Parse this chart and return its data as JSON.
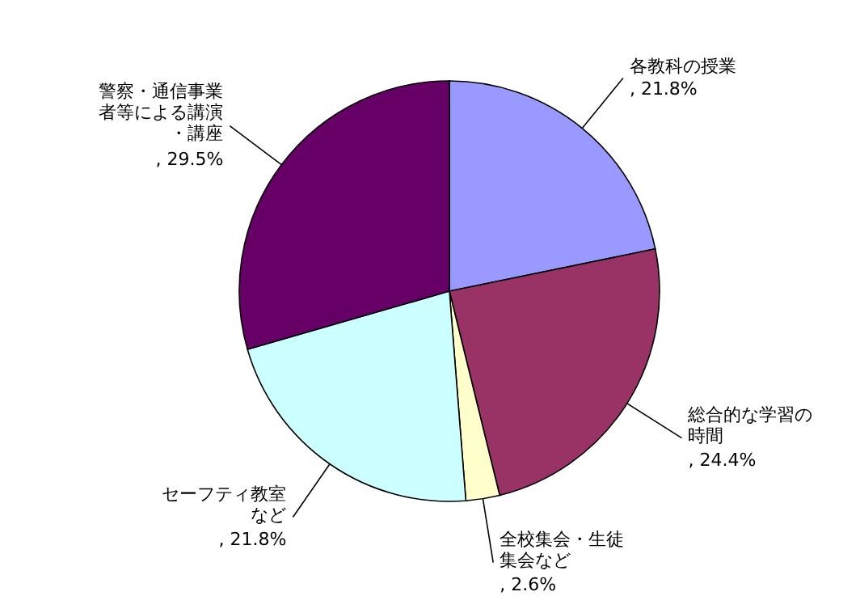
{
  "chart_data": {
    "type": "pie",
    "categories": [
      "各教科の授業",
      "総合的な学習の時間",
      "全校集会・生徒集会など",
      "セーフティ教室など",
      "警察・通信事業者等による講演・講座"
    ],
    "values": [
      21.8,
      24.4,
      2.6,
      21.8,
      29.5
    ],
    "colors": [
      "#9999ff",
      "#993366",
      "#ffffcc",
      "#ccffff",
      "#660066"
    ],
    "value_labels": [
      ", 21.8%",
      ", 24.4%",
      ", 2.6%",
      ", 21.8%",
      ", 29.5%"
    ]
  }
}
